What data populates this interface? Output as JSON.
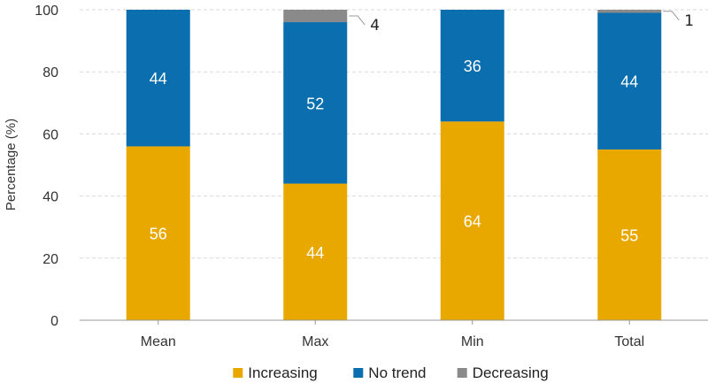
{
  "chart_data": {
    "type": "bar",
    "stacked": true,
    "categories": [
      "Mean",
      "Max",
      "Min",
      "Total"
    ],
    "series": [
      {
        "name": "Increasing",
        "values": [
          56,
          44,
          64,
          55
        ],
        "color": "#E8A800"
      },
      {
        "name": "No trend",
        "values": [
          44,
          52,
          36,
          44
        ],
        "color": "#0B6FAF"
      },
      {
        "name": "Decreasing",
        "values": [
          0,
          4,
          0,
          1
        ],
        "color": "#8A8A8A"
      }
    ],
    "data_labels": [
      {
        "category": "Mean",
        "series": "Increasing",
        "text": "56"
      },
      {
        "category": "Mean",
        "series": "No trend",
        "text": "44"
      },
      {
        "category": "Max",
        "series": "Increasing",
        "text": "44"
      },
      {
        "category": "Max",
        "series": "No trend",
        "text": "52"
      },
      {
        "category": "Max",
        "series": "Decreasing",
        "text": "4",
        "callout": true
      },
      {
        "category": "Min",
        "series": "Increasing",
        "text": "64"
      },
      {
        "category": "Min",
        "series": "No trend",
        "text": "36"
      },
      {
        "category": "Total",
        "series": "Increasing",
        "text": "55"
      },
      {
        "category": "Total",
        "series": "No trend",
        "text": "44"
      },
      {
        "category": "Total",
        "series": "Decreasing",
        "text": "1",
        "callout": true
      }
    ],
    "title": "",
    "xlabel": "",
    "ylabel": "Percentage (%)",
    "ylim": [
      0,
      100
    ],
    "yticks": [
      0,
      20,
      40,
      60,
      80,
      100
    ],
    "grid": true,
    "legend_position": "bottom",
    "label_colors": {
      "light": "#ffffff",
      "dark": "#222222"
    },
    "grid_color": "#d9d9d9",
    "axis_color": "#999999"
  }
}
